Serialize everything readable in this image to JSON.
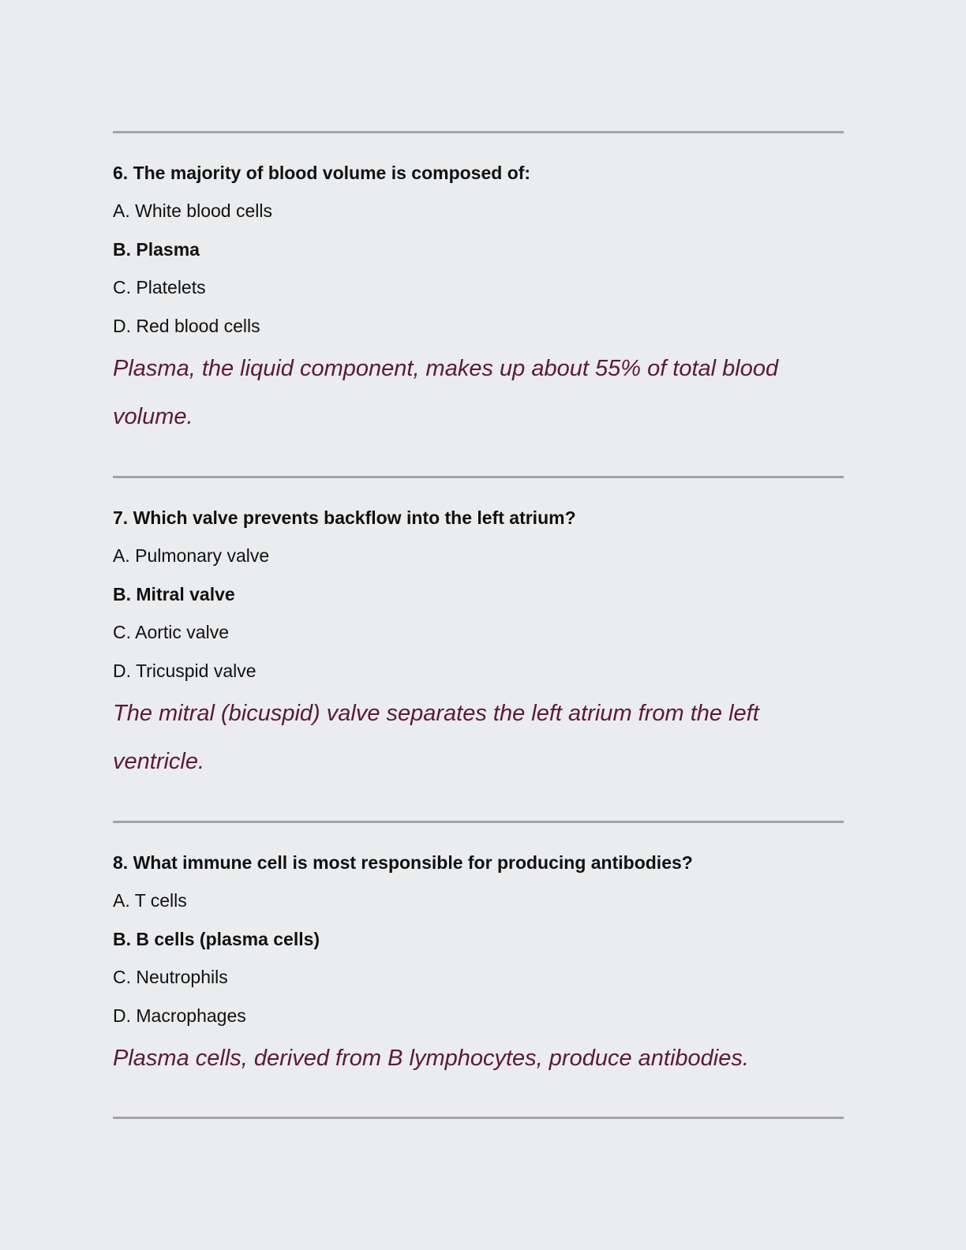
{
  "accent_color": "#5a1a3a",
  "questions": [
    {
      "title": "6. The majority of blood volume is composed of:",
      "options": [
        "A. White blood cells",
        "B. Plasma",
        "C. Platelets",
        "D. Red blood cells"
      ],
      "correct_index": 1,
      "explanation": "Plasma, the liquid component, makes up about 55% of total blood volume."
    },
    {
      "title": "7. Which valve prevents backflow into the left atrium?",
      "options": [
        "A. Pulmonary valve",
        "B. Mitral valve",
        "C. Aortic valve",
        "D. Tricuspid valve"
      ],
      "correct_index": 1,
      "explanation": "The mitral (bicuspid) valve separates the left atrium from the left ventricle."
    },
    {
      "title": "8. What immune cell is most responsible for producing antibodies?",
      "options": [
        "A. T cells",
        "B. B cells (plasma cells)",
        "C. Neutrophils",
        "D. Macrophages"
      ],
      "correct_index": 1,
      "explanation": "Plasma cells, derived from B lymphocytes, produce antibodies."
    }
  ]
}
